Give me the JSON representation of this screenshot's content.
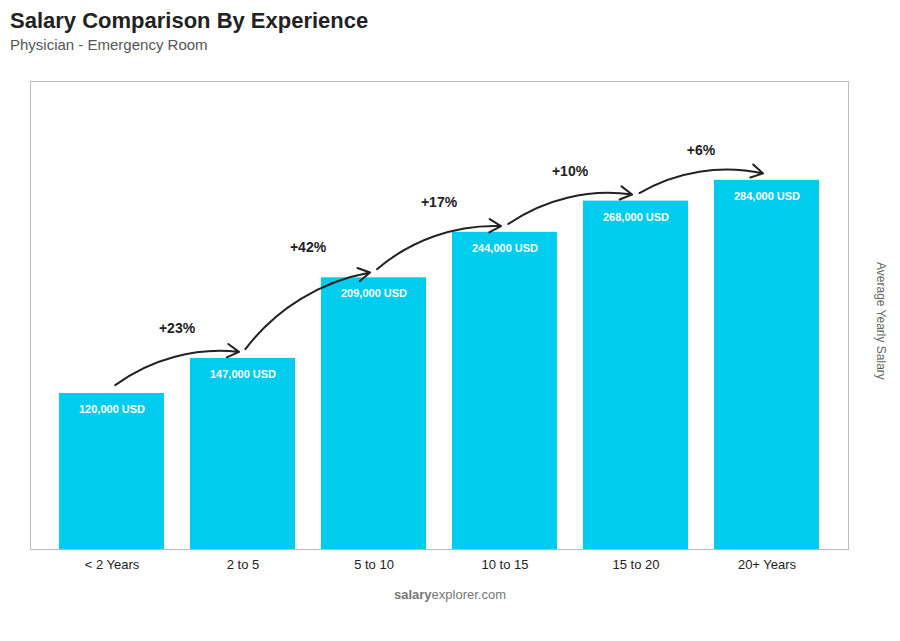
{
  "chart_data": {
    "type": "bar",
    "title": "Salary Comparison By Experience",
    "subtitle": "Physician - Emergency Room",
    "ylabel": "Average Yearly Salary",
    "categories": [
      "< 2 Years",
      "2 to 5",
      "5 to 10",
      "10 to 15",
      "15 to 20",
      "20+ Years"
    ],
    "values": [
      120000,
      147000,
      209000,
      244000,
      268000,
      284000
    ],
    "value_labels": [
      "120,000 USD",
      "147,000 USD",
      "209,000 USD",
      "244,000 USD",
      "268,000 USD",
      "284,000 USD"
    ],
    "data_labels": true,
    "annotations": [
      "+23%",
      "+42%",
      "+17%",
      "+10%",
      "+6%"
    ],
    "watermark": [
      "salary",
      "explorer.com"
    ],
    "color": "#00ccee",
    "ylim": [
      0,
      360000
    ],
    "yticks": [],
    "tick_labels": "x",
    "grid": false
  }
}
